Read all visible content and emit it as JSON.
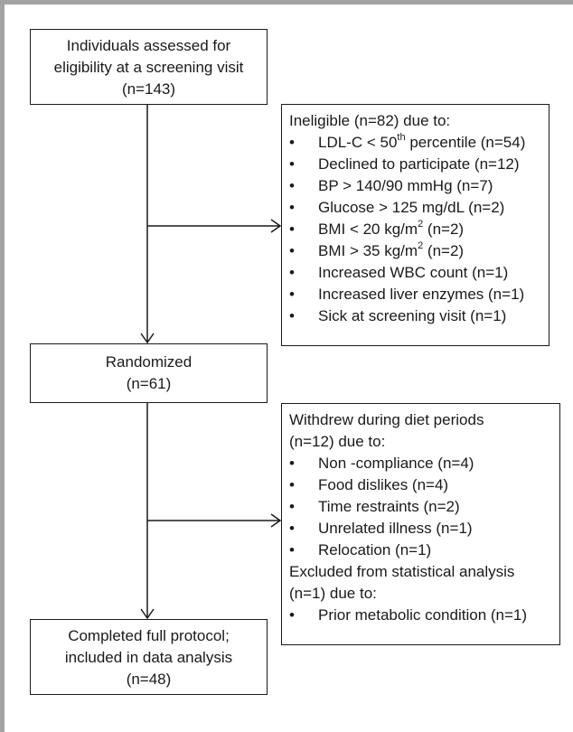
{
  "colors": {
    "frame": "#a3a3a3",
    "stroke": "#1a1a1a"
  },
  "assessed": {
    "line1": "Individuals assessed for",
    "line2": "eligibility at a screening visit",
    "count": "(n=143)"
  },
  "ineligible": {
    "heading": "Ineligible (n=82) due to:",
    "bullet": "•",
    "items": [
      {
        "pre": "LDL-C < 50",
        "sup": "th",
        "post": " percentile (n=54)"
      },
      {
        "pre": "Declined to participate (n=12)",
        "sup": "",
        "post": ""
      },
      {
        "pre": "BP > 140/90 mmHg (n=7)",
        "sup": "",
        "post": ""
      },
      {
        "pre": "Glucose > 125 mg/dL (n=2)",
        "sup": "",
        "post": ""
      },
      {
        "pre": "BMI < 20 kg/m",
        "sup": "2",
        "post": " (n=2)"
      },
      {
        "pre": "BMI > 35 kg/m",
        "sup": "2",
        "post": " (n=2)"
      },
      {
        "pre": "Increased WBC count (n=1)",
        "sup": "",
        "post": ""
      },
      {
        "pre": "Increased liver enzymes (n=1)",
        "sup": "",
        "post": ""
      },
      {
        "pre": "Sick at screening visit (n=1)",
        "sup": "",
        "post": ""
      }
    ]
  },
  "randomized": {
    "label": "Randomized",
    "count": "(n=61)"
  },
  "withdrew": {
    "heading1": "Withdrew during diet periods",
    "heading2": "(n=12) due to:",
    "items": [
      "Non -compliance (n=4)",
      "Food dislikes (n=4)",
      "Time restraints (n=2)",
      "Unrelated illness (n=1)",
      "Relocation (n=1)"
    ],
    "excluded1": "Excluded from statistical analysis",
    "excluded2": "(n=1) due to:",
    "excluded_items": [
      "Prior metabolic condition (n=1)"
    ]
  },
  "completed": {
    "line1": "Completed full protocol;",
    "line2": "included in data analysis",
    "count": "(n=48)"
  }
}
